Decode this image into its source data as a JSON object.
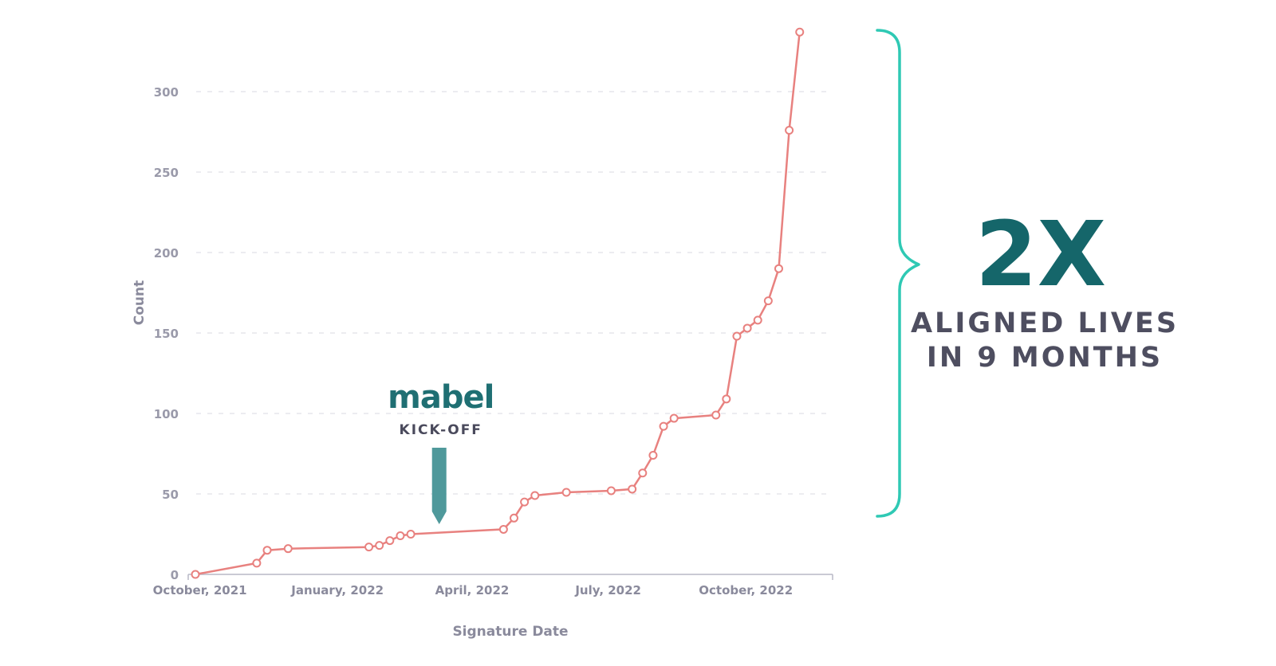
{
  "chart_data": {
    "type": "line",
    "xlabel": "Signature Date",
    "ylabel": "Count",
    "ylim": [
      0,
      310
    ],
    "yticks": [
      0,
      50,
      100,
      150,
      200,
      250,
      300
    ],
    "xlim": [
      "2021-09-28",
      "2022-11-28"
    ],
    "xticks": [
      {
        "date": "2021-10-01",
        "label": "October, 2021"
      },
      {
        "date": "2022-01-01",
        "label": "January, 2022"
      },
      {
        "date": "2022-04-01",
        "label": "April, 2022"
      },
      {
        "date": "2022-07-01",
        "label": "July, 2022"
      },
      {
        "date": "2022-10-01",
        "label": "October, 2022"
      }
    ],
    "grid": "horizontal-dashed",
    "color": "#e8817f",
    "points": [
      {
        "x": "2021-09-28",
        "y": 0
      },
      {
        "x": "2021-11-08",
        "y": 7
      },
      {
        "x": "2021-11-15",
        "y": 15
      },
      {
        "x": "2021-11-29",
        "y": 16
      },
      {
        "x": "2022-01-22",
        "y": 17
      },
      {
        "x": "2022-01-29",
        "y": 18
      },
      {
        "x": "2022-02-05",
        "y": 21
      },
      {
        "x": "2022-02-12",
        "y": 24
      },
      {
        "x": "2022-02-19",
        "y": 25
      },
      {
        "x": "2022-04-22",
        "y": 28
      },
      {
        "x": "2022-04-29",
        "y": 35
      },
      {
        "x": "2022-05-06",
        "y": 45
      },
      {
        "x": "2022-05-13",
        "y": 49
      },
      {
        "x": "2022-06-03",
        "y": 51
      },
      {
        "x": "2022-07-03",
        "y": 52
      },
      {
        "x": "2022-07-17",
        "y": 53
      },
      {
        "x": "2022-07-24",
        "y": 63
      },
      {
        "x": "2022-07-31",
        "y": 74
      },
      {
        "x": "2022-08-07",
        "y": 92
      },
      {
        "x": "2022-08-14",
        "y": 97
      },
      {
        "x": "2022-09-11",
        "y": 99
      },
      {
        "x": "2022-09-18",
        "y": 109
      },
      {
        "x": "2022-09-25",
        "y": 148
      },
      {
        "x": "2022-10-02",
        "y": 153
      },
      {
        "x": "2022-10-09",
        "y": 158
      },
      {
        "x": "2022-10-16",
        "y": 170
      },
      {
        "x": "2022-10-23",
        "y": 190
      },
      {
        "x": "2022-10-30",
        "y": 276
      },
      {
        "x": "2022-11-06",
        "y": 337
      }
    ],
    "annotation": {
      "brand": "mabel",
      "text": "KICK-OFF",
      "date": "2022-03-10",
      "marker_color": "#4f999b"
    },
    "brace_color": "#2fc9b4"
  },
  "callout": {
    "headline": "2X",
    "line1": "ALIGNED LIVES",
    "line2": "IN 9 MONTHS"
  }
}
